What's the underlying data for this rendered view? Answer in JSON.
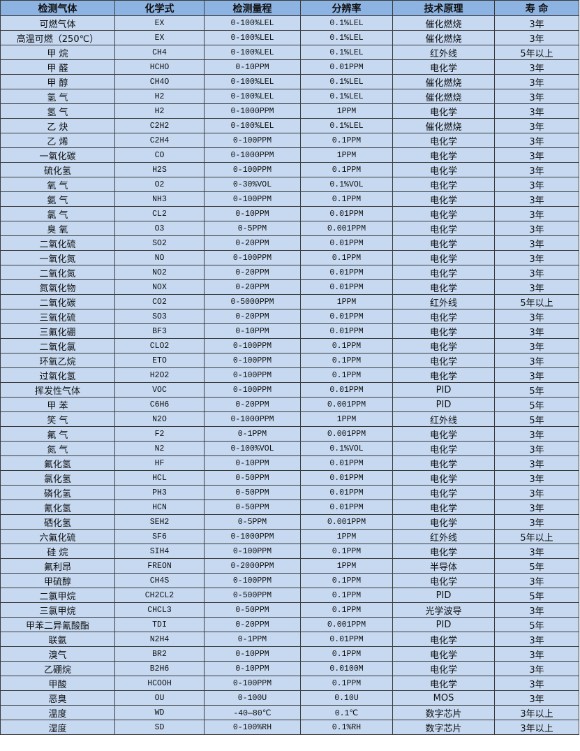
{
  "colors": {
    "header_bg": "#8db3e2",
    "row_bg": "#c6d9f1",
    "border": "#3a3a3a"
  },
  "headers": [
    "检测气体",
    "化学式",
    "检测量程",
    "分辨率",
    "技术原理",
    "寿 命"
  ],
  "rows": [
    [
      "可燃气体",
      "EX",
      "0-100%LEL",
      "0.1%LEL",
      "催化燃烧",
      "3年"
    ],
    [
      "高温可燃（250℃）",
      "EX",
      "0-100%LEL",
      "0.1%LEL",
      "催化燃烧",
      "3年"
    ],
    [
      "甲 烷",
      "CH4",
      "0-100%LEL",
      "0.1%LEL",
      "红外线",
      "5年以上"
    ],
    [
      "甲 醛",
      "HCHO",
      "0-10PPM",
      "0.01PPM",
      "电化学",
      "3年"
    ],
    [
      "甲 醇",
      "CH4O",
      "0-100%LEL",
      "0.1%LEL",
      "催化燃烧",
      "3年"
    ],
    [
      "氢 气",
      "H2",
      "0-100%LEL",
      "0.1%LEL",
      "催化燃烧",
      "3年"
    ],
    [
      "氢 气",
      "H2",
      "0-1000PPM",
      "1PPM",
      "电化学",
      "3年"
    ],
    [
      "乙 炔",
      "C2H2",
      "0-100%LEL",
      "0.1%LEL",
      "催化燃烧",
      "3年"
    ],
    [
      "乙 烯",
      "C2H4",
      "0-100PPM",
      "0.1PPM",
      "电化学",
      "3年"
    ],
    [
      "一氧化碳",
      "CO",
      "0-1000PPM",
      "1PPM",
      "电化学",
      "3年"
    ],
    [
      "硫化氢",
      "H2S",
      "0-100PPM",
      "0.1PPM",
      "电化学",
      "3年"
    ],
    [
      "氧 气",
      "O2",
      "0-30%VOL",
      "0.1%VOL",
      "电化学",
      "3年"
    ],
    [
      "氨 气",
      "NH3",
      "0-100PPM",
      "0.1PPM",
      "电化学",
      "3年"
    ],
    [
      "氯 气",
      "CL2",
      "0-10PPM",
      "0.01PPM",
      "电化学",
      "3年"
    ],
    [
      "臭 氧",
      "O3",
      "0-5PPM",
      "0.001PPM",
      "电化学",
      "3年"
    ],
    [
      "二氧化硫",
      "SO2",
      "0-20PPM",
      "0.01PPM",
      "电化学",
      "3年"
    ],
    [
      "一氧化氮",
      "NO",
      "0-100PPM",
      "0.1PPM",
      "电化学",
      "3年"
    ],
    [
      "二氧化氮",
      "NO2",
      "0-20PPM",
      "0.01PPM",
      "电化学",
      "3年"
    ],
    [
      "氮氧化物",
      "NOX",
      "0-20PPM",
      "0.01PPM",
      "电化学",
      "3年"
    ],
    [
      "二氧化碳",
      "CO2",
      "0-5000PPM",
      "1PPM",
      "红外线",
      "5年以上"
    ],
    [
      "三氧化硫",
      "SO3",
      "0-20PPM",
      "0.01PPM",
      "电化学",
      "3年"
    ],
    [
      "三氟化硼",
      "BF3",
      "0-10PPM",
      "0.01PPM",
      "电化学",
      "3年"
    ],
    [
      "二氧化氯",
      "CLO2",
      "0-100PPM",
      "0.1PPM",
      "电化学",
      "3年"
    ],
    [
      "环氧乙烷",
      "ETO",
      "0-100PPM",
      "0.1PPM",
      "电化学",
      "3年"
    ],
    [
      "过氧化氢",
      "H2O2",
      "0-100PPM",
      "0.1PPM",
      "电化学",
      "3年"
    ],
    [
      "挥发性气体",
      "VOC",
      "0-100PPM",
      "0.01PPM",
      "PID",
      "5年"
    ],
    [
      "甲 苯",
      "C6H6",
      "0-20PPM",
      "0.001PPM",
      "PID",
      "5年"
    ],
    [
      "笑 气",
      "N2O",
      "0-1000PPM",
      "1PPM",
      "红外线",
      "5年"
    ],
    [
      "氟 气",
      "F2",
      "0-1PPM",
      "0.001PPM",
      "电化学",
      "3年"
    ],
    [
      "氮 气",
      "N2",
      "0-100%VOL",
      "0.1%VOL",
      "电化学",
      "3年"
    ],
    [
      "氟化氢",
      "HF",
      "0-10PPM",
      "0.01PPM",
      "电化学",
      "3年"
    ],
    [
      "氯化氢",
      "HCL",
      "0-50PPM",
      "0.01PPM",
      "电化学",
      "3年"
    ],
    [
      "磷化氢",
      "PH3",
      "0-50PPM",
      "0.01PPM",
      "电化学",
      "3年"
    ],
    [
      "氰化氢",
      "HCN",
      "0-50PPM",
      "0.01PPM",
      "电化学",
      "3年"
    ],
    [
      "硒化氢",
      "SEH2",
      "0-5PPM",
      "0.001PPM",
      "电化学",
      "3年"
    ],
    [
      "六氟化硫",
      "SF6",
      "0-1000PPM",
      "1PPM",
      "红外线",
      "5年以上"
    ],
    [
      "硅 烷",
      "SIH4",
      "0-100PPM",
      "0.1PPM",
      "电化学",
      "3年"
    ],
    [
      "氟利昂",
      "FREON",
      "0-2000PPM",
      "1PPM",
      "半导体",
      "5年"
    ],
    [
      "甲硫醇",
      "CH4S",
      "0-100PPM",
      "0.1PPM",
      "电化学",
      "3年"
    ],
    [
      "二氯甲烷",
      "CH2CL2",
      "0-500PPM",
      "0.1PPM",
      "PID",
      "5年"
    ],
    [
      "三氯甲烷",
      "CHCL3",
      "0-50PPM",
      "0.1PPM",
      "光学波导",
      "3年"
    ],
    [
      "甲苯二异氰酸酯",
      "TDI",
      "0-20PPM",
      "0.001PPM",
      "PID",
      "5年"
    ],
    [
      "联氨",
      "N2H4",
      "0-1PPM",
      "0.01PPM",
      "电化学",
      "3年"
    ],
    [
      "溴气",
      "BR2",
      "0-10PPM",
      "0.1PPM",
      "电化学",
      "3年"
    ],
    [
      "乙硼烷",
      "B2H6",
      "0-10PPM",
      "0.0100M",
      "电化学",
      "3年"
    ],
    [
      "甲酸",
      "HCOOH",
      "0-100PPM",
      "0.1PPM",
      "电化学",
      "3年"
    ],
    [
      "恶臭",
      "OU",
      "0-100U",
      "0.10U",
      "MOS",
      "3年"
    ],
    [
      "温度",
      "WD",
      "-40—80℃",
      "0.1℃",
      "数字芯片",
      "3年以上"
    ],
    [
      "湿度",
      "SD",
      "0-100%RH",
      "0.1%RH",
      "数字芯片",
      "3年以上"
    ]
  ]
}
